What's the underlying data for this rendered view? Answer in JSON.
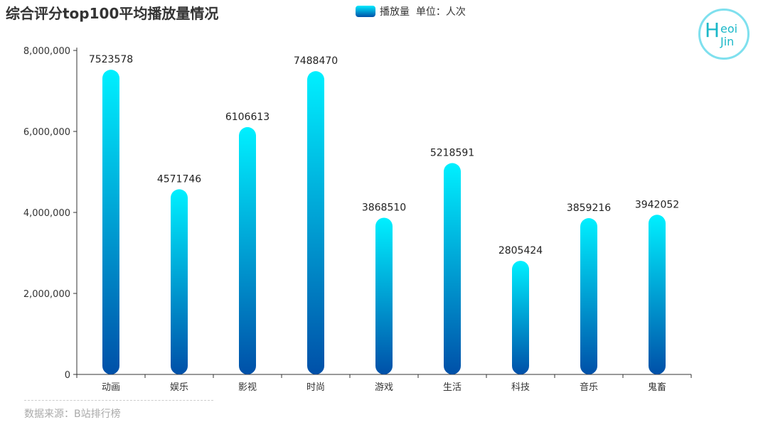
{
  "title": "综合评分top100平均播放量情况",
  "source": "数据来源：B站排行榜",
  "logo_text": "Heoi Jin",
  "colors": {
    "top": "#00f0ff",
    "bottom": "#0050a8"
  },
  "chart_data": {
    "type": "bar",
    "title": "综合评分top100平均播放量情况",
    "legend": "播放量  单位：人次",
    "legend_position": "top-center",
    "categories": [
      "动画",
      "娱乐",
      "影视",
      "时尚",
      "游戏",
      "生活",
      "科技",
      "音乐",
      "鬼畜"
    ],
    "values": [
      7523578,
      4571746,
      6106613,
      7488470,
      3868510,
      5218591,
      2805424,
      3859216,
      3942052
    ],
    "ylim": [
      0,
      8000000
    ],
    "yticks": [
      0,
      2000000,
      4000000,
      6000000,
      8000000
    ],
    "ytick_labels": [
      "0",
      "2,000,000",
      "4,000,000",
      "6,000,000",
      "8,000,000"
    ],
    "grid": false
  }
}
